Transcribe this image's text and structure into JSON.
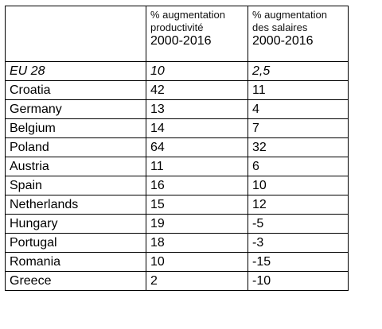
{
  "table": {
    "headers": {
      "country": "",
      "productivity": {
        "line1": "% augmentation",
        "line2": "productivité",
        "period": "2000-2016"
      },
      "wages": {
        "line1": "% augmentation",
        "line2": "des salaires",
        "period": "2000-2016"
      }
    },
    "rows": [
      {
        "country": "EU 28",
        "productivity": "10",
        "wages": "2,5"
      },
      {
        "country": "Croatia",
        "productivity": "42",
        "wages": "11"
      },
      {
        "country": "Germany",
        "productivity": "13",
        "wages": "4"
      },
      {
        "country": "Belgium",
        "productivity": "14",
        "wages": "7"
      },
      {
        "country": "Poland",
        "productivity": "64",
        "wages": "32"
      },
      {
        "country": "Austria",
        "productivity": "11",
        "wages": "6"
      },
      {
        "country": "Spain",
        "productivity": "16",
        "wages": "10"
      },
      {
        "country": "Netherlands",
        "productivity": "15",
        "wages": "12"
      },
      {
        "country": "Hungary",
        "productivity": "19",
        "wages": "-5"
      },
      {
        "country": "Portugal",
        "productivity": "18",
        "wages": "-3"
      },
      {
        "country": "Romania",
        "productivity": "10",
        "wages": "-15"
      },
      {
        "country": "Greece",
        "productivity": "2",
        "wages": "-10"
      }
    ]
  }
}
